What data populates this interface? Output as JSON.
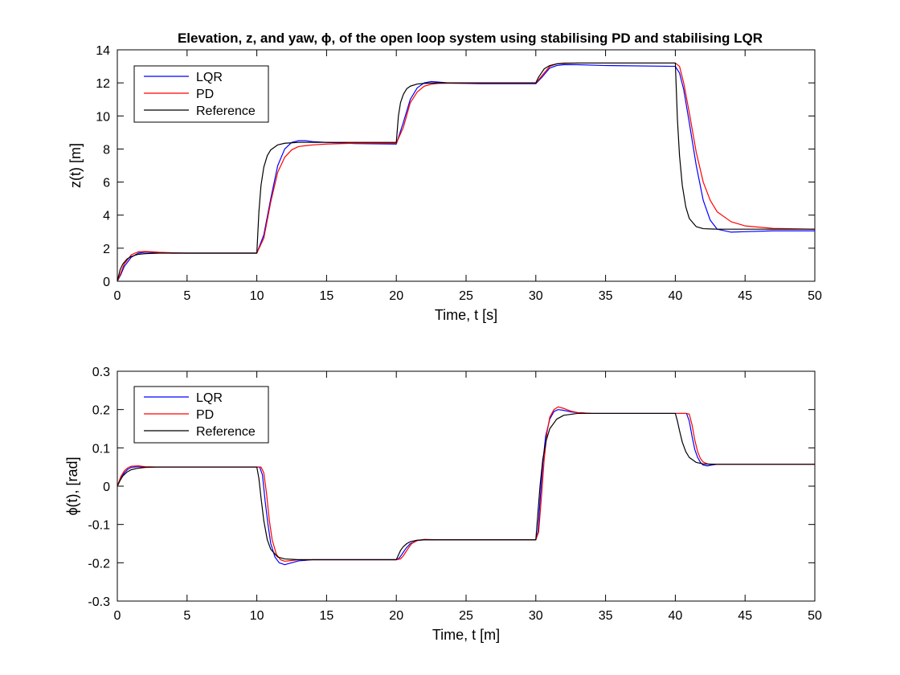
{
  "chart_data": [
    {
      "type": "line",
      "title": "Elevation, z, and yaw, ϕ, of the open loop system using stabilising PD and stabilising LQR",
      "xlabel": "Time, t [s]",
      "ylabel": "z(t) [m]",
      "xlim": [
        0,
        50
      ],
      "ylim": [
        0,
        14
      ],
      "xticks": [
        0,
        5,
        10,
        15,
        20,
        25,
        30,
        35,
        40,
        45,
        50
      ],
      "yticks": [
        0,
        2,
        4,
        6,
        8,
        10,
        12,
        14
      ],
      "grid": false,
      "legend_position": "top-left",
      "series": [
        {
          "name": "LQR",
          "color": "#0000ff",
          "x": [
            0,
            0.25,
            0.5,
            1,
            1.5,
            2,
            2.5,
            3,
            4,
            5,
            10,
            10.5,
            11,
            11.5,
            12,
            12.5,
            13,
            13.5,
            14,
            15,
            17,
            20,
            20.5,
            21,
            21.5,
            22,
            22.5,
            23,
            24,
            26,
            30,
            30.5,
            31,
            31.5,
            32,
            33,
            35,
            40,
            40.3,
            40.6,
            41,
            41.5,
            42,
            42.5,
            43,
            44,
            45,
            47,
            50
          ],
          "y": [
            0,
            0.4,
            0.9,
            1.45,
            1.7,
            1.76,
            1.74,
            1.72,
            1.7,
            1.7,
            1.7,
            2.8,
            5.0,
            7.0,
            8.0,
            8.4,
            8.5,
            8.5,
            8.45,
            8.4,
            8.33,
            8.3,
            9.6,
            11.0,
            11.7,
            12.0,
            12.08,
            12.05,
            11.98,
            11.95,
            11.95,
            12.4,
            12.9,
            13.05,
            13.1,
            13.1,
            13.05,
            13.0,
            12.6,
            11.6,
            9.6,
            7.0,
            4.9,
            3.7,
            3.15,
            2.97,
            3.0,
            3.05,
            3.05
          ]
        },
        {
          "name": "PD",
          "color": "#ff0000",
          "x": [
            0,
            0.25,
            0.5,
            1,
            1.5,
            2,
            2.5,
            3,
            4,
            5,
            10,
            10.5,
            11,
            11.5,
            12,
            12.5,
            13,
            14,
            15,
            17,
            20,
            20.5,
            21,
            21.5,
            22,
            22.5,
            23,
            24,
            26,
            30,
            30.5,
            31,
            31.5,
            32,
            33,
            35,
            40,
            40.3,
            40.6,
            41,
            41.5,
            42,
            42.5,
            43,
            44,
            45,
            47,
            50
          ],
          "y": [
            0,
            0.5,
            1.05,
            1.6,
            1.78,
            1.8,
            1.78,
            1.75,
            1.72,
            1.7,
            1.7,
            2.6,
            4.8,
            6.6,
            7.5,
            7.95,
            8.15,
            8.25,
            8.3,
            8.35,
            8.35,
            9.3,
            10.8,
            11.45,
            11.8,
            11.92,
            11.97,
            11.98,
            11.98,
            11.98,
            12.5,
            13.0,
            13.15,
            13.2,
            13.2,
            13.2,
            13.2,
            13.0,
            12.0,
            10.2,
            7.8,
            6.0,
            4.9,
            4.2,
            3.6,
            3.35,
            3.2,
            3.15
          ]
        },
        {
          "name": "Reference",
          "color": "#000000",
          "x": [
            0,
            0.2,
            0.4,
            0.7,
            1,
            1.5,
            2,
            3,
            5,
            10,
            10.15,
            10.3,
            10.5,
            10.75,
            11,
            11.5,
            12,
            13,
            15,
            20,
            20.15,
            20.3,
            20.5,
            20.75,
            21,
            21.5,
            22,
            23,
            25,
            30,
            30.2,
            30.4,
            30.6,
            31,
            31.5,
            32,
            33,
            35,
            40,
            40.15,
            40.3,
            40.5,
            40.75,
            41,
            41.5,
            42,
            43,
            45,
            50
          ],
          "y": [
            0,
            0.7,
            1.05,
            1.35,
            1.5,
            1.63,
            1.67,
            1.7,
            1.7,
            1.7,
            4.2,
            5.8,
            6.9,
            7.6,
            7.95,
            8.25,
            8.35,
            8.4,
            8.4,
            8.4,
            10.0,
            10.8,
            11.3,
            11.65,
            11.8,
            11.93,
            11.97,
            12.0,
            12.0,
            12.0,
            12.35,
            12.6,
            12.85,
            13.05,
            13.15,
            13.18,
            13.2,
            13.2,
            13.2,
            9.8,
            7.6,
            5.8,
            4.5,
            3.8,
            3.3,
            3.18,
            3.15,
            3.15,
            3.15
          ]
        }
      ]
    },
    {
      "type": "line",
      "xlabel": "Time, t [m]",
      "ylabel": "ϕ(t), [rad]",
      "xlim": [
        0,
        50
      ],
      "ylim": [
        -0.3,
        0.3
      ],
      "xticks": [
        0,
        5,
        10,
        15,
        20,
        25,
        30,
        35,
        40,
        45,
        50
      ],
      "yticks": [
        -0.3,
        -0.2,
        -0.1,
        0,
        0.1,
        0.2,
        0.3
      ],
      "grid": false,
      "legend_position": "top-left",
      "series": [
        {
          "name": "LQR",
          "color": "#0000ff",
          "x": [
            0,
            0.25,
            0.5,
            0.75,
            1,
            1.5,
            2,
            3,
            5,
            10,
            10.2,
            10.4,
            10.6,
            10.8,
            11,
            11.3,
            11.6,
            12,
            12.5,
            13,
            14,
            15,
            20,
            20.2,
            20.4,
            20.7,
            21,
            21.5,
            22,
            23,
            25,
            30,
            30.15,
            30.3,
            30.5,
            30.7,
            31,
            31.3,
            31.6,
            32,
            32.5,
            33,
            34,
            35,
            40,
            40.8,
            41,
            41.2,
            41.4,
            41.6,
            41.8,
            42,
            42.3,
            42.6,
            43,
            44,
            45,
            50
          ],
          "y": [
            0,
            0.02,
            0.035,
            0.044,
            0.049,
            0.051,
            0.05,
            0.05,
            0.05,
            0.05,
            0.05,
            0.03,
            -0.04,
            -0.1,
            -0.15,
            -0.185,
            -0.2,
            -0.205,
            -0.2,
            -0.195,
            -0.192,
            -0.192,
            -0.192,
            -0.188,
            -0.178,
            -0.162,
            -0.15,
            -0.142,
            -0.14,
            -0.14,
            -0.14,
            -0.14,
            -0.12,
            -0.04,
            0.06,
            0.13,
            0.175,
            0.195,
            0.2,
            0.198,
            0.194,
            0.192,
            0.19,
            0.19,
            0.19,
            0.19,
            0.17,
            0.13,
            0.095,
            0.075,
            0.062,
            0.055,
            0.053,
            0.055,
            0.057,
            0.057,
            0.057,
            0.057
          ]
        },
        {
          "name": "PD",
          "color": "#ff0000",
          "x": [
            0,
            0.25,
            0.5,
            0.75,
            1,
            1.5,
            2,
            3,
            5,
            10,
            10.3,
            10.5,
            10.7,
            10.9,
            11.1,
            11.4,
            11.7,
            12,
            12.5,
            13,
            14,
            15,
            20,
            20.3,
            20.5,
            20.8,
            21.1,
            21.5,
            22,
            23,
            25,
            30,
            30.2,
            30.4,
            30.6,
            30.8,
            31,
            31.3,
            31.6,
            32,
            32.5,
            33,
            34,
            35,
            40,
            40.8,
            41,
            41.2,
            41.4,
            41.6,
            41.8,
            42,
            42.3,
            42.6,
            43,
            44,
            45,
            50
          ],
          "y": [
            0,
            0.025,
            0.04,
            0.048,
            0.052,
            0.053,
            0.051,
            0.05,
            0.05,
            0.05,
            0.05,
            0.035,
            -0.02,
            -0.09,
            -0.14,
            -0.178,
            -0.192,
            -0.196,
            -0.194,
            -0.192,
            -0.192,
            -0.192,
            -0.192,
            -0.19,
            -0.182,
            -0.165,
            -0.15,
            -0.142,
            -0.139,
            -0.14,
            -0.14,
            -0.14,
            -0.12,
            -0.03,
            0.07,
            0.14,
            0.18,
            0.2,
            0.207,
            0.203,
            0.196,
            0.192,
            0.19,
            0.19,
            0.19,
            0.19,
            0.188,
            0.16,
            0.12,
            0.09,
            0.072,
            0.063,
            0.058,
            0.057,
            0.057,
            0.057,
            0.057,
            0.057
          ]
        },
        {
          "name": "Reference",
          "color": "#000000",
          "x": [
            0,
            0.2,
            0.4,
            0.7,
            1,
            1.5,
            2,
            3,
            5,
            10,
            10.15,
            10.3,
            10.5,
            10.75,
            11,
            11.5,
            12,
            13,
            15,
            20,
            20.15,
            20.3,
            20.5,
            20.75,
            21,
            21.5,
            22,
            23,
            25,
            30,
            30.15,
            30.3,
            30.5,
            30.75,
            31,
            31.5,
            32,
            33,
            35,
            40,
            40.15,
            40.3,
            40.5,
            40.75,
            41,
            41.5,
            42,
            43,
            45,
            50
          ],
          "y": [
            0,
            0.015,
            0.027,
            0.037,
            0.043,
            0.047,
            0.049,
            0.05,
            0.05,
            0.05,
            0.02,
            -0.03,
            -0.09,
            -0.14,
            -0.165,
            -0.185,
            -0.19,
            -0.192,
            -0.192,
            -0.192,
            -0.18,
            -0.168,
            -0.158,
            -0.15,
            -0.145,
            -0.141,
            -0.14,
            -0.14,
            -0.14,
            -0.14,
            -0.07,
            0.0,
            0.07,
            0.12,
            0.15,
            0.175,
            0.185,
            0.19,
            0.19,
            0.19,
            0.17,
            0.145,
            0.115,
            0.09,
            0.075,
            0.062,
            0.058,
            0.057,
            0.057,
            0.057
          ]
        }
      ]
    }
  ]
}
